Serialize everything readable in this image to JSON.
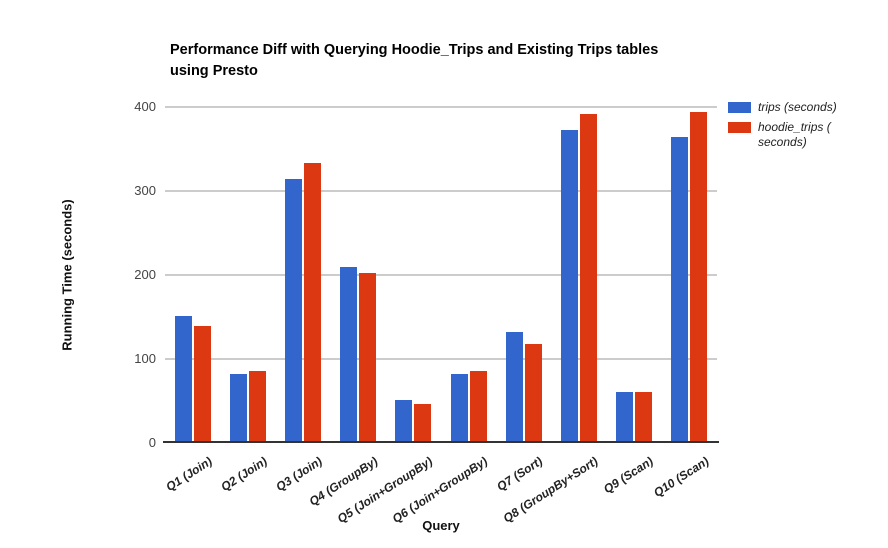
{
  "title": {
    "line1": "Performance Diff with Querying Hoodie_Trips and Existing Trips tables",
    "line2": "using Presto"
  },
  "axes": {
    "x_title": "Query",
    "y_title": "Running Time (seconds)"
  },
  "legend": {
    "items": [
      {
        "label": "trips (seconds)",
        "color": "#3366cc"
      },
      {
        "label": "hoodie_trips (\nseconds)",
        "color": "#dc3912"
      }
    ]
  },
  "colors": {
    "series_blue": "#3366cc",
    "series_red": "#dc3912",
    "gridline": "#cccccc",
    "axis_line": "#333333",
    "tick_text": "#444444"
  },
  "chart_data": {
    "type": "bar",
    "title": "Performance Diff with Querying Hoodie_Trips and Existing Trips tables using Presto",
    "xlabel": "Query",
    "ylabel": "Running Time (seconds)",
    "categories": [
      "Q1 (Join)",
      "Q2 (Join)",
      "Q3 (Join)",
      "Q4 (GroupBy)",
      "Q5 (Join+GroupBy)",
      "Q6 (Join+GroupBy)",
      "Q7 (Sort)",
      "Q8 (GroupBy+Sort)",
      "Q9 (Scan)",
      "Q10 (Scan)"
    ],
    "series": [
      {
        "name": "trips (seconds)",
        "color": "#3366cc",
        "values": [
          150,
          81,
          313,
          208,
          50,
          81,
          131,
          371,
          60,
          363
        ]
      },
      {
        "name": "hoodie_trips (seconds)",
        "color": "#dc3912",
        "values": [
          138,
          84,
          332,
          201,
          45,
          85,
          117,
          390,
          59,
          393
        ]
      }
    ],
    "ylim": [
      0,
      400
    ],
    "yticks": [
      0,
      100,
      200,
      300,
      400
    ],
    "grid": true,
    "legend_position": "right"
  }
}
